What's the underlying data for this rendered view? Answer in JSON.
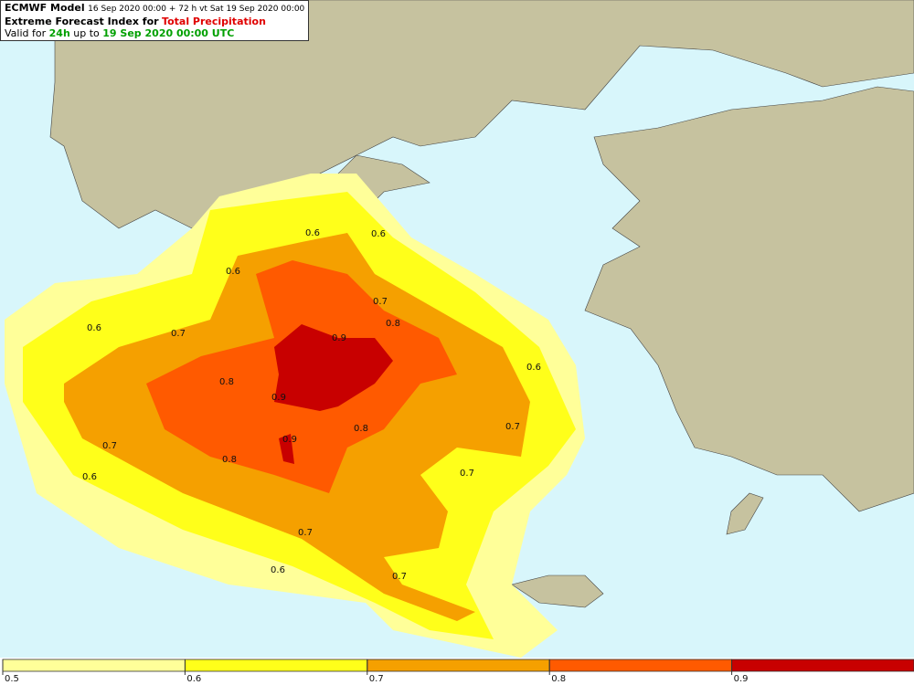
{
  "header": {
    "model": "ECMWF Model",
    "run": "16 Sep 2020 00:00 + 72 h vt Sat 19 Sep 2020 00:00",
    "index": "Extreme Forecast Index for",
    "parameter": "Total Precipitation",
    "valid_prefix": "Valid for",
    "period": "24h",
    "valid_mid": "up to",
    "valid_time": "19 Sep 2020 00:00 UTC"
  },
  "contour_labels": [
    0.6,
    0.6,
    0.6,
    0.6,
    0.7,
    0.8,
    0.9,
    0.7,
    0.8,
    0.9,
    0.9,
    0.8,
    0.8,
    0.6,
    0.7,
    0.7,
    0.7,
    0.6,
    0.7,
    0.6,
    0.7
  ],
  "colorbar": {
    "ticks": [
      0.5,
      0.6,
      0.7,
      0.8,
      0.9
    ],
    "colors": [
      "#ffff99",
      "#ffff1a",
      "#f5a000",
      "#ff5a00",
      "#c80000"
    ]
  }
}
